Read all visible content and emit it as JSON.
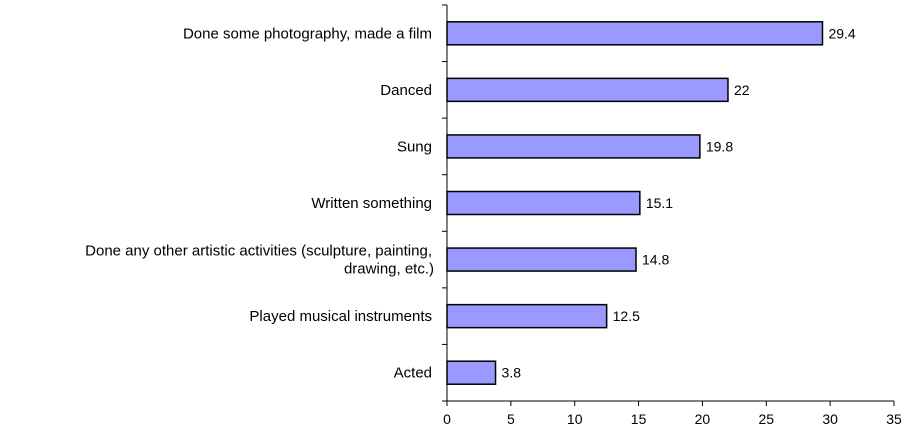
{
  "chart_data": {
    "type": "bar",
    "orientation": "horizontal",
    "categories": [
      [
        "Done some photography, made a film"
      ],
      [
        "Danced"
      ],
      [
        "Sung"
      ],
      [
        "Written something"
      ],
      [
        "Done any other artistic activities (sculpture, painting,",
        "drawing, etc.)"
      ],
      [
        "Played musical instruments"
      ],
      [
        "Acted"
      ]
    ],
    "values": [
      29.4,
      22,
      19.8,
      15.1,
      14.8,
      12.5,
      3.8
    ],
    "value_labels": [
      "29.4",
      "22",
      "19.8",
      "15.1",
      "14.8",
      "12.5",
      "3.8"
    ],
    "xlim": [
      0,
      35
    ],
    "xticks": [
      0,
      5,
      10,
      15,
      20,
      25,
      30,
      35
    ],
    "title": "",
    "xlabel": "",
    "ylabel": "",
    "grid": false,
    "legend": "none",
    "colors": {
      "bar_fill": "#9999ff",
      "bar_stroke": "#000000",
      "axis": "#000000"
    }
  }
}
